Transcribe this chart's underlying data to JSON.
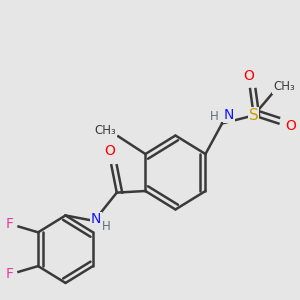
{
  "background_color": "#e6e6e6",
  "bond_color": "#3a3a3a",
  "atom_colors": {
    "N": "#1414FF",
    "O": "#FF0000",
    "S": "#C8A000",
    "F": "#E040A0",
    "C": "#3a3a3a",
    "H": "#607080"
  },
  "lw": 1.8
}
